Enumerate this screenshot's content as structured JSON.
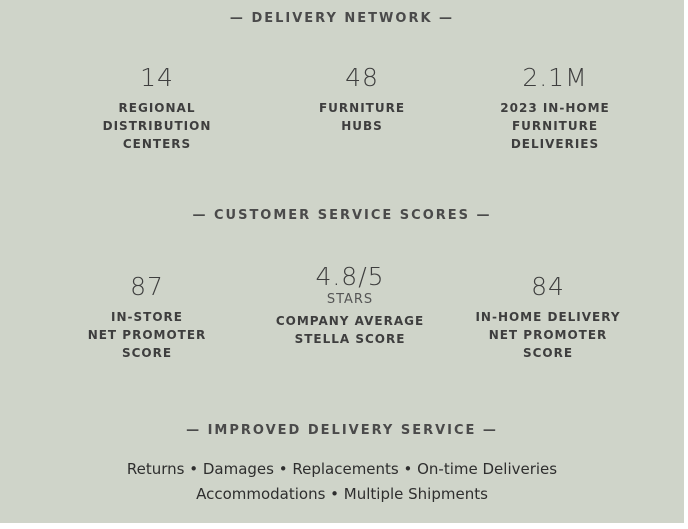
{
  "sections": [
    {
      "heading": "— DELIVERY NETWORK —",
      "stats": [
        {
          "value": "14",
          "label_lines": [
            "REGIONAL",
            "DISTRIBUTION",
            "CENTERS"
          ]
        },
        {
          "value": "48",
          "label_lines": [
            "FURNITURE",
            "HUBS"
          ]
        },
        {
          "value": "2.1M",
          "label_lines": [
            "2023 IN-HOME",
            "FURNITURE",
            "DELIVERIES"
          ]
        }
      ]
    },
    {
      "heading": "— CUSTOMER SERVICE SCORES —",
      "stats": [
        {
          "value": "87",
          "label_lines": [
            "IN-STORE",
            "NET PROMOTER",
            "SCORE"
          ]
        },
        {
          "value": "4.8/5",
          "subvalue": "STARS",
          "label_lines": [
            "COMPANY AVERAGE",
            "STELLA SCORE"
          ]
        },
        {
          "value": "84",
          "label_lines": [
            "IN-HOME DELIVERY",
            "NET PROMOTER",
            "SCORE"
          ]
        }
      ]
    },
    {
      "heading": "— IMPROVED DELIVERY SERVICE —",
      "lines": [
        "Returns • Damages • Replacements • On-time Deliveries",
        "Accommodations • Multiple Shipments"
      ]
    }
  ]
}
